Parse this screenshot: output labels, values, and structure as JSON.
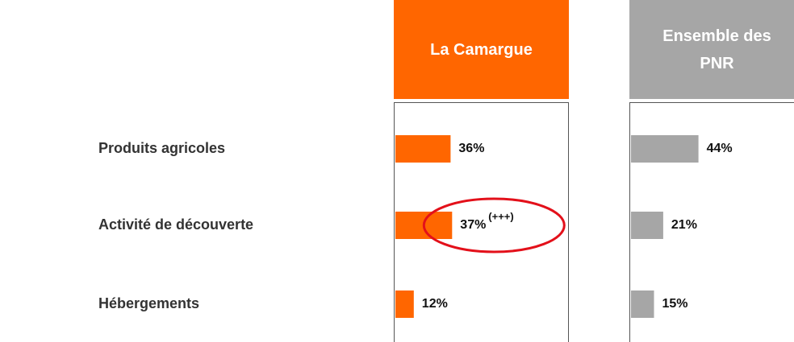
{
  "chart_data": {
    "type": "bar",
    "categories": [
      "Produits agricoles",
      "Activité de découverte",
      "Hébergements"
    ],
    "series": [
      {
        "name": "La Camargue",
        "color": "#ff6600",
        "values": [
          36,
          37,
          12
        ],
        "value_labels": [
          "36%",
          "37%",
          "12%"
        ]
      },
      {
        "name": "Ensemble des PNR",
        "color": "#a6a6a6",
        "values": [
          44,
          21,
          15
        ],
        "value_labels": [
          "44%",
          "21%",
          "15%"
        ]
      }
    ],
    "annotations": [
      {
        "text": "(+++)",
        "series": 0,
        "index": 1
      }
    ]
  }
}
